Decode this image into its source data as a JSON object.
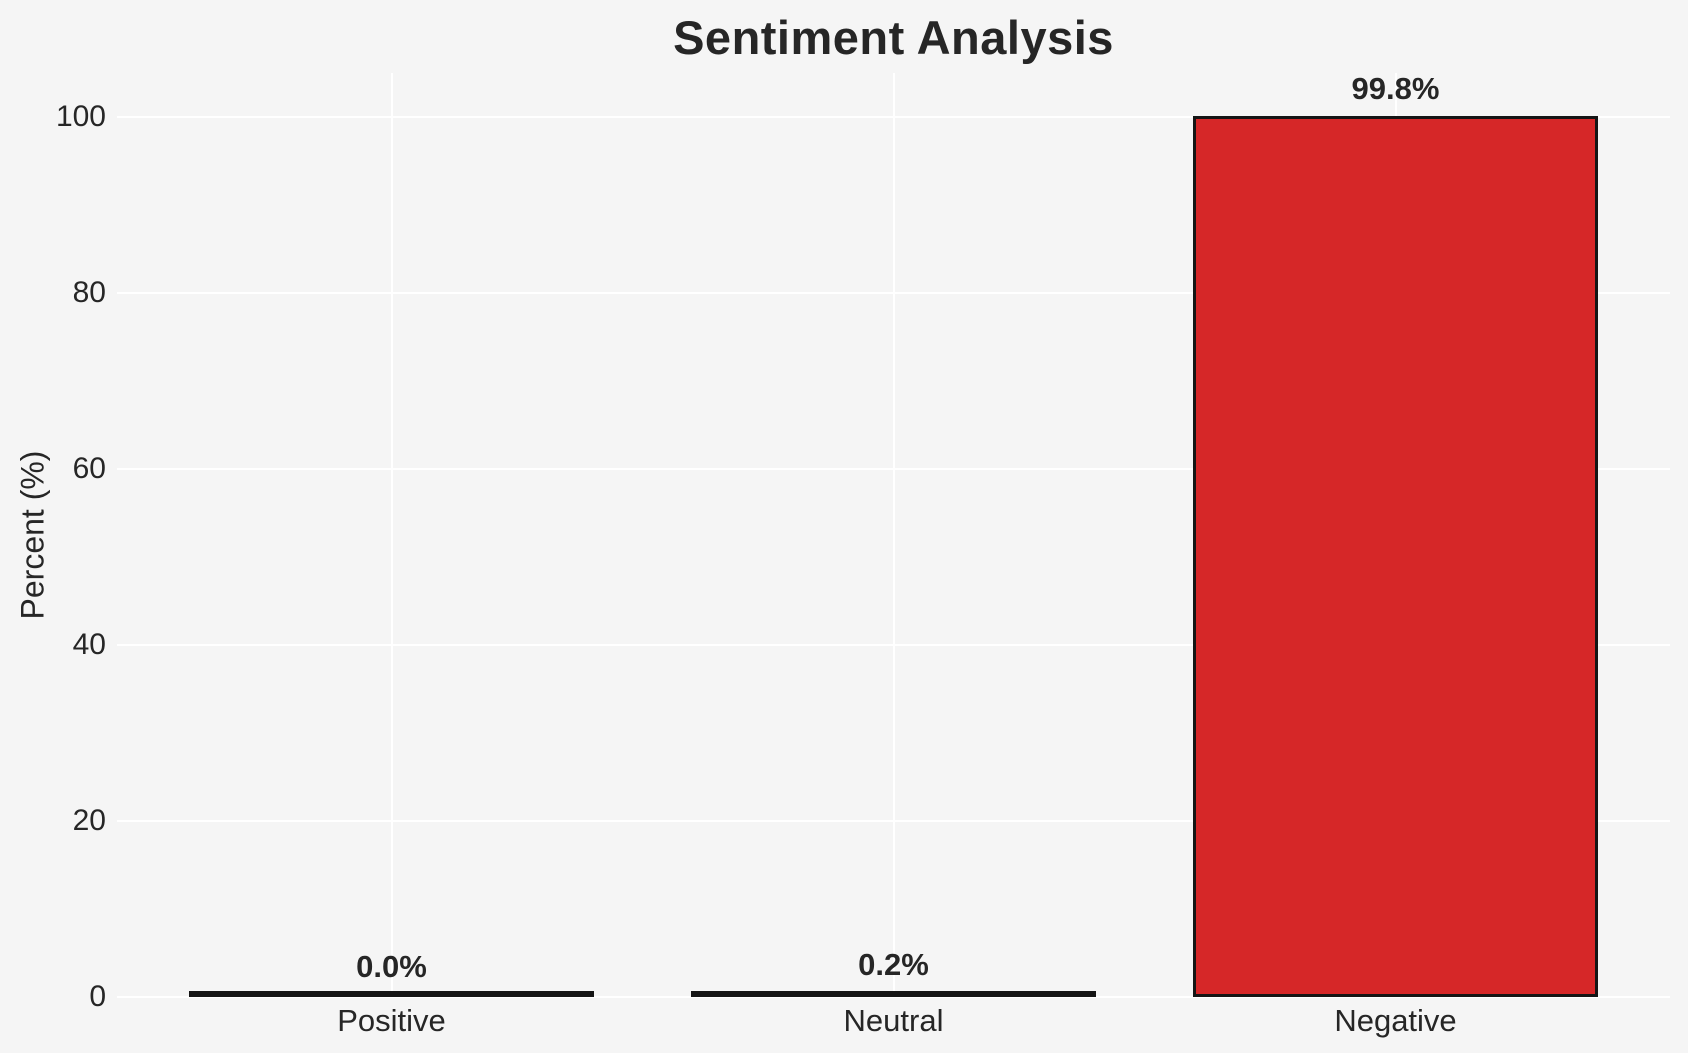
{
  "chart_data": {
    "type": "bar",
    "title": "Sentiment Analysis",
    "xlabel": "",
    "ylabel": "Percent (%)",
    "categories": [
      "Positive",
      "Neutral",
      "Negative"
    ],
    "values": [
      0.0,
      0.2,
      99.8
    ],
    "value_labels": [
      "0.0%",
      "0.2%",
      "99.8%"
    ],
    "yticks": [
      0,
      20,
      40,
      60,
      80,
      100
    ],
    "ylim": [
      0,
      105
    ],
    "grid": "on",
    "legend": "none",
    "colors": {
      "background": "#f5f5f5",
      "gridline": "#ffffff",
      "bar_fill": "#d62728",
      "bar_edge": "#151515",
      "text": "#262626"
    }
  }
}
